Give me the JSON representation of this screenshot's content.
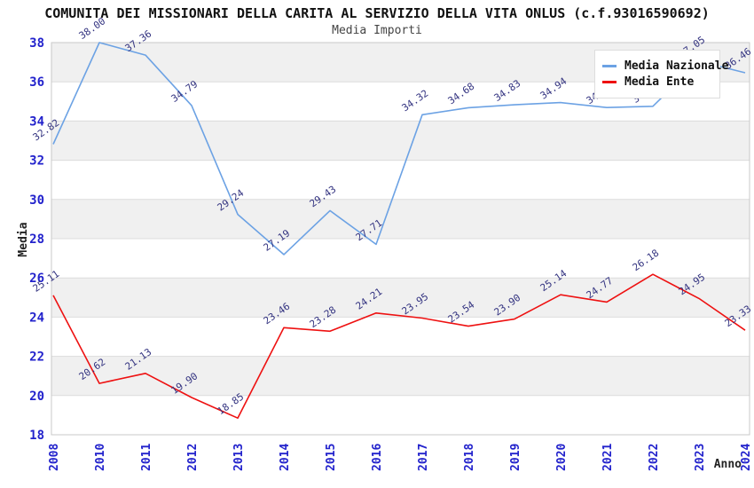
{
  "chart_data": {
    "type": "line",
    "title": "COMUNITA DEI MISSIONARI DELLA CARITA AL SERVIZIO DELLA VITA ONLUS (c.f.93016590692)",
    "subtitle": "Media Importi",
    "xlabel": "Anno",
    "ylabel": "Media",
    "ylim": [
      18,
      38
    ],
    "ytick_step": 2,
    "yticks": [
      "18",
      "20",
      "22",
      "24",
      "26",
      "28",
      "30",
      "32",
      "34",
      "36",
      "38"
    ],
    "grid": "horizontal-alternating-bands",
    "legend_position": "top-right",
    "categories": [
      "2008",
      "2010",
      "2011",
      "2012",
      "2013",
      "2014",
      "2015",
      "2016",
      "2017",
      "2018",
      "2019",
      "2020",
      "2021",
      "2022",
      "2023",
      "2024"
    ],
    "series": [
      {
        "name": "Media Nazionale",
        "color": "#6CA2E4",
        "values": [
          32.82,
          38.0,
          37.36,
          34.79,
          29.24,
          27.19,
          29.43,
          27.71,
          34.32,
          34.68,
          34.83,
          34.94,
          34.69,
          34.75,
          37.05,
          36.46
        ],
        "labels": [
          "32.82",
          "38.00",
          "37.36",
          "34.79",
          "29.24",
          "27.19",
          "29.43",
          "27.71",
          "34.32",
          "34.68",
          "34.83",
          "34.94",
          "34.69",
          "34.75",
          "37.05",
          "36.46"
        ]
      },
      {
        "name": "Media Ente",
        "color": "#EE1111",
        "values": [
          25.11,
          20.62,
          21.13,
          19.9,
          18.85,
          23.46,
          23.28,
          24.21,
          23.95,
          23.54,
          23.9,
          25.14,
          24.77,
          26.18,
          24.95,
          23.33
        ],
        "labels": [
          "25.11",
          "20.62",
          "21.13",
          "19.90",
          "18.85",
          "23.46",
          "23.28",
          "24.21",
          "23.95",
          "23.54",
          "23.90",
          "25.14",
          "24.77",
          "26.18",
          "24.95",
          "23.33"
        ]
      }
    ],
    "colors": {
      "tick_label": "#2222CC",
      "data_label": "#333380",
      "band": "#F0F0F0",
      "gridline": "#DCDCDC",
      "frame": "#C9C9C9",
      "axis_title": "#222222",
      "title": "#111111",
      "subtitle": "#444444",
      "background": "#FFFFFF"
    }
  }
}
